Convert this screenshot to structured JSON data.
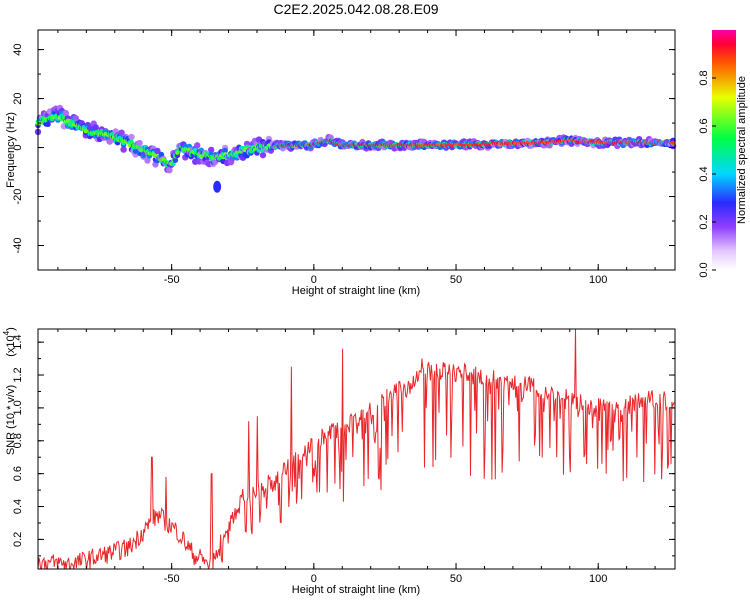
{
  "title": "C2E2.2025.042.08.28.E09",
  "colors": {
    "snr_line": "#e8262a",
    "axis": "#000000"
  },
  "chart_data": [
    {
      "type": "heatmap",
      "xlabel": "Height of straight line (km)",
      "ylabel": "Frequency (Hz)",
      "xlim": [
        -97,
        127
      ],
      "ylim": [
        -50,
        48
      ],
      "x_ticks": [
        "-50",
        "0",
        "50",
        "100"
      ],
      "y_ticks": [
        "-40",
        "-20",
        "0",
        "20",
        "40"
      ],
      "colorbar": {
        "label": "Normalized spectral amplitude",
        "range": [
          0,
          1
        ],
        "ticks": [
          "0.0",
          "0.2",
          "0.4",
          "0.6",
          "0.8"
        ],
        "colormap": "rainbow (white → magenta → blue → cyan → green → yellow → red)"
      },
      "ridge": {
        "x": [
          -97,
          -90,
          -80,
          -70,
          -60,
          -50,
          -47,
          -40,
          -35,
          -30,
          -20,
          -10,
          0,
          5,
          10,
          20,
          50,
          80,
          90,
          100,
          127
        ],
        "y": [
          10,
          13,
          7,
          4,
          -1,
          -7,
          0,
          -3,
          -4,
          -3,
          0,
          1,
          1,
          3,
          1,
          1,
          1,
          2,
          3,
          2,
          2
        ]
      },
      "isolated_blob": {
        "x": -34,
        "y": -16
      }
    },
    {
      "type": "line",
      "xlabel": "Height of straight line (km)",
      "ylabel": "SNR (10 * v/v)",
      "multiplier_label": "(x10",
      "multiplier_exp": "4",
      "xlim": [
        -97,
        127
      ],
      "ylim": [
        0.02,
        1.48
      ],
      "x_ticks": [
        "-50",
        "0",
        "50",
        "100"
      ],
      "y_ticks": [
        "0.2",
        "0.4",
        "0.6",
        "0.8",
        "1.0",
        "1.2",
        "1.4"
      ],
      "series": [
        {
          "trend_x": [
            -97,
            -85,
            -75,
            -65,
            -55,
            -48,
            -42,
            -36,
            -30,
            -25,
            -15,
            -5,
            0,
            10,
            20,
            30,
            40,
            50,
            60,
            80,
            90,
            100,
            110,
            120,
            127
          ],
          "trend_y": [
            0.06,
            0.05,
            0.1,
            0.15,
            0.35,
            0.25,
            0.1,
            0.06,
            0.3,
            0.45,
            0.55,
            0.7,
            0.8,
            0.88,
            1.0,
            1.1,
            1.22,
            1.22,
            1.18,
            1.12,
            1.05,
            1.0,
            1.02,
            1.05,
            1.05
          ],
          "spikes_x": [
            -57,
            -52,
            -36,
            -23,
            -20,
            -8,
            10,
            38,
            92
          ],
          "spikes_y": [
            0.7,
            0.58,
            0.6,
            0.92,
            0.95,
            1.25,
            1.36,
            1.3,
            1.48
          ]
        }
      ]
    }
  ]
}
